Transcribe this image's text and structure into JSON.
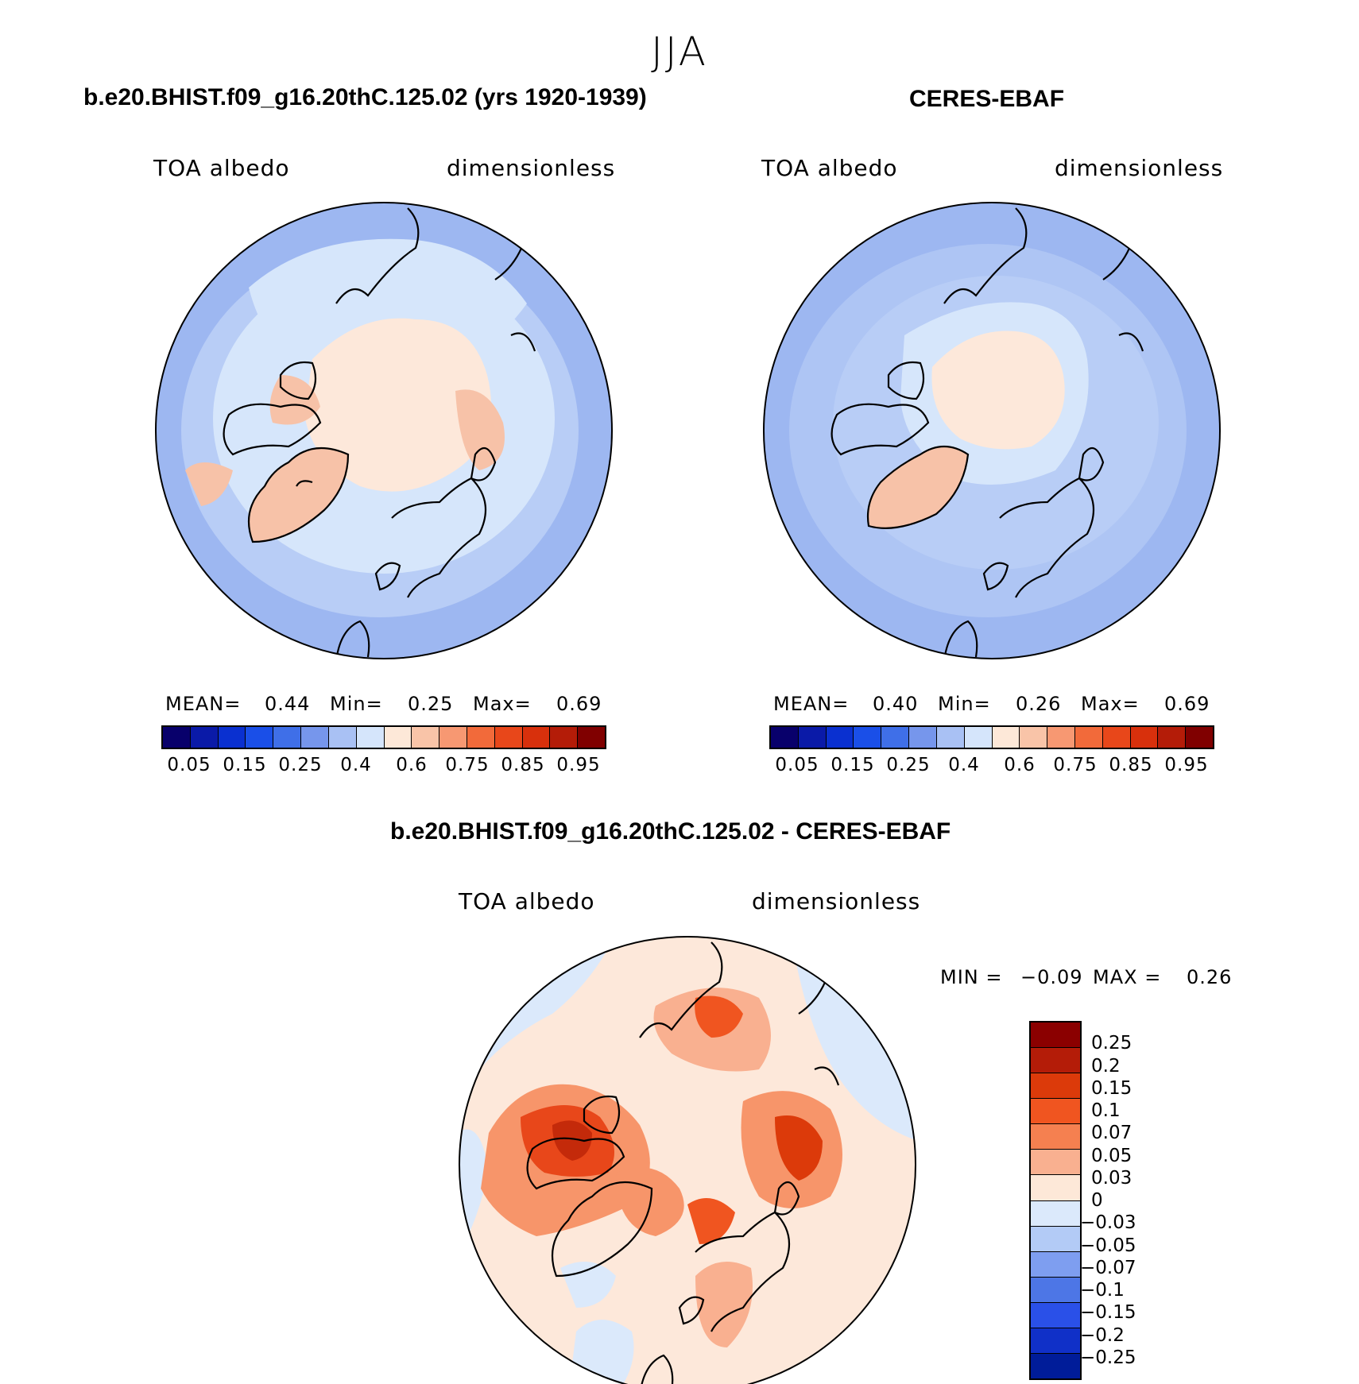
{
  "season": "JJA",
  "panels": [
    {
      "title": "b.e20.BHIST.f09_g16.20thC.125.02 (yrs 1920-1939)",
      "left_label": "TOA albedo",
      "right_label": "dimensionless",
      "stats": {
        "mean_label": "MEAN=",
        "mean": "0.44",
        "min_label": "Min=",
        "min": "0.25",
        "max_label": "Max=",
        "max": "0.69"
      }
    },
    {
      "title": "CERES-EBAF",
      "left_label": "TOA albedo",
      "right_label": "dimensionless",
      "stats": {
        "mean_label": "MEAN=",
        "mean": "0.40",
        "min_label": "Min=",
        "min": "0.26",
        "max_label": "Max=",
        "max": "0.69"
      }
    },
    {
      "title": "b.e20.BHIST.f09_g16.20thC.125.02 - CERES-EBAF",
      "left_label": "TOA albedo",
      "right_label": "dimensionless",
      "stats": {
        "min_label": "MIN =",
        "min": "−0.09",
        "max_label": "MAX =",
        "max": "0.26"
      }
    }
  ],
  "colorbar_top": {
    "colors": [
      "#08006b",
      "#0a1aa8",
      "#0a30d0",
      "#1a4fe8",
      "#3f6fe8",
      "#7696ec",
      "#a9c1f4",
      "#d5e5fb",
      "#fde8d8",
      "#f9c4a8",
      "#f79872",
      "#f26a3a",
      "#e8471a",
      "#d8300c",
      "#b41c08",
      "#800000"
    ],
    "ticks": [
      "0.05",
      "0.15",
      "0.25",
      "0.4",
      "0.6",
      "0.75",
      "0.85",
      "0.95"
    ]
  },
  "colorbar_diff": {
    "colors": [
      "#8b0000",
      "#b41c08",
      "#dc3a0a",
      "#f05520",
      "#f58050",
      "#f9b090",
      "#fde8d8",
      "#dbe9fb",
      "#b3cbf6",
      "#7e9ef0",
      "#4d76e6",
      "#2a50e8",
      "#1030c8",
      "#001c99"
    ],
    "ticks": [
      "0.25",
      "0.2",
      "0.15",
      "0.1",
      "0.07",
      "0.05",
      "0.03",
      "0",
      "−0.03",
      "−0.05",
      "−0.07",
      "−0.1",
      "−0.15",
      "−0.2",
      "−0.25"
    ]
  }
}
